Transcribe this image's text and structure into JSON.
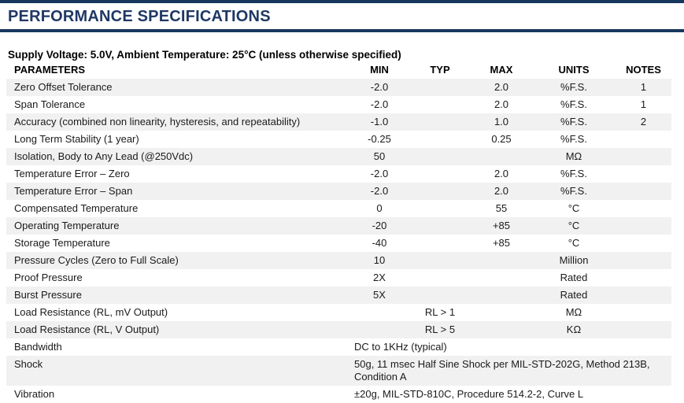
{
  "page": {
    "title": "PERFORMANCE SPECIFICATIONS",
    "subtitle": "Supply Voltage: 5.0V, Ambient Temperature: 25°C (unless otherwise specified)"
  },
  "colors": {
    "accent_navy": "#17375e",
    "title_blue": "#1f3864",
    "row_stripe": "#f1f1f1"
  },
  "table": {
    "headers": [
      "PARAMETERS",
      "MIN",
      "TYP",
      "MAX",
      "UNITS",
      "NOTES"
    ],
    "rows": [
      {
        "parameter": "Zero Offset Tolerance",
        "min": "-2.0",
        "typ": "",
        "max": "2.0",
        "units": "%F.S.",
        "notes": "1"
      },
      {
        "parameter": "Span Tolerance",
        "min": "-2.0",
        "typ": "",
        "max": "2.0",
        "units": "%F.S.",
        "notes": "1"
      },
      {
        "parameter": "Accuracy (combined non linearity, hysteresis, and repeatability)",
        "min": "-1.0",
        "typ": "",
        "max": "1.0",
        "units": "%F.S.",
        "notes": "2"
      },
      {
        "parameter": "Long Term Stability (1 year)",
        "min": "-0.25",
        "typ": "",
        "max": "0.25",
        "units": "%F.S.",
        "notes": ""
      },
      {
        "parameter": "Isolation, Body to Any Lead (@250Vdc)",
        "min": "50",
        "typ": "",
        "max": "",
        "units": "MΩ",
        "notes": ""
      },
      {
        "parameter": "Temperature Error – Zero",
        "min": "-2.0",
        "typ": "",
        "max": "2.0",
        "units": "%F.S.",
        "notes": ""
      },
      {
        "parameter": "Temperature Error – Span",
        "min": "-2.0",
        "typ": "",
        "max": "2.0",
        "units": "%F.S.",
        "notes": ""
      },
      {
        "parameter": "Compensated Temperature",
        "min": "0",
        "typ": "",
        "max": "55",
        "units": "°C",
        "notes": ""
      },
      {
        "parameter": "Operating Temperature",
        "min": "-20",
        "typ": "",
        "max": "+85",
        "units": "°C",
        "notes": ""
      },
      {
        "parameter": "Storage Temperature",
        "min": "-40",
        "typ": "",
        "max": "+85",
        "units": "°C",
        "notes": ""
      },
      {
        "parameter": "Pressure Cycles (Zero to Full Scale)",
        "min": "10",
        "typ": "",
        "max": "",
        "units": "Million",
        "notes": ""
      },
      {
        "parameter": "Proof Pressure",
        "min": "2X",
        "typ": "",
        "max": "",
        "units": "Rated",
        "notes": ""
      },
      {
        "parameter": "Burst Pressure",
        "min": "5X",
        "typ": "",
        "max": "",
        "units": "Rated",
        "notes": ""
      },
      {
        "parameter": "Load Resistance (RL, mV Output)",
        "min": "",
        "typ": "RL > 1",
        "max": "",
        "units": "MΩ",
        "notes": ""
      },
      {
        "parameter": "Load Resistance (RL, V Output)",
        "min": "",
        "typ": "RL > 5",
        "max": "",
        "units": "KΩ",
        "notes": ""
      },
      {
        "parameter": "Bandwidth",
        "span": "DC to 1KHz (typical)"
      },
      {
        "parameter": "Shock",
        "span": "50g, 11 msec Half Sine Shock per MIL-STD-202G, Method 213B, Condition A"
      },
      {
        "parameter": "Vibration",
        "span": "±20g, MIL-STD-810C, Procedure 514.2-2, Curve L"
      }
    ]
  }
}
